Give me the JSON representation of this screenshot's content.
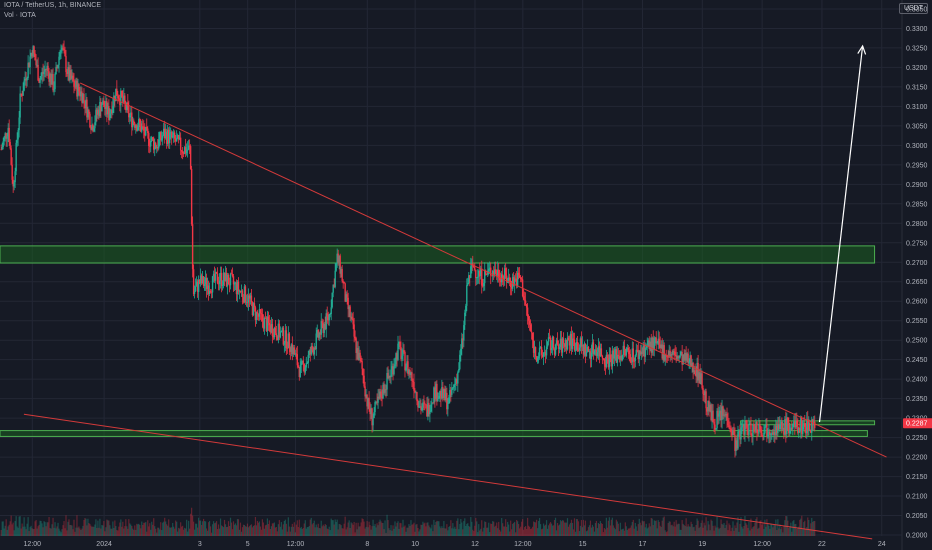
{
  "header": {
    "title": "IOTA / TetherUS, 1h, BINANCE",
    "indicator": "Vol · IOTA"
  },
  "currency_button": "USDT",
  "current_price_label": "0.2287",
  "colors": {
    "background": "#161a25",
    "grid": "#232735",
    "up": "#22ab94",
    "down": "#f23645",
    "zone_fill": "#1b5e20",
    "zone_stroke": "#4caf50",
    "trendline": "#d33a3a",
    "arrow": "#ffffff",
    "price_tag": "#f23645"
  },
  "chart_data": {
    "type": "candlestick",
    "title": "IOTA / TetherUS, 1h, BINANCE",
    "ylabel": "USDT",
    "y_axis_ticks": [
      "0.3350",
      "0.3300",
      "0.3250",
      "0.3200",
      "0.3150",
      "0.3100",
      "0.3050",
      "0.3000",
      "0.2950",
      "0.2900",
      "0.2850",
      "0.2800",
      "0.2750",
      "0.2700",
      "0.2650",
      "0.2600",
      "0.2550",
      "0.2500",
      "0.2450",
      "0.2400",
      "0.2350",
      "0.2300",
      "0.2250",
      "0.2200",
      "0.2150",
      "0.2100",
      "0.2050",
      "0.2000"
    ],
    "x_axis_ticks": [
      "12:00",
      "2024",
      "3",
      "5",
      "12:00",
      "8",
      "10",
      "12",
      "12:00",
      "15",
      "17",
      "19",
      "12:00",
      "22",
      "24"
    ],
    "x_tick_centers": [
      0,
      3,
      7,
      9,
      11,
      14,
      16,
      18.5,
      20.5,
      23,
      25.5,
      28,
      30.5,
      33,
      35.5
    ],
    "x_range": [
      -1.35,
      37.6
    ],
    "ylim": [
      0.19975,
      0.3373
    ],
    "grid": true,
    "zones": [
      {
        "y_low": 0.2698,
        "y_high": 0.2742,
        "x_from": -1.35,
        "x_to": 35.2
      },
      {
        "y_low": 0.2253,
        "y_high": 0.2268,
        "x_from": -1.35,
        "x_to": 34.9
      },
      {
        "y_low": 0.2283,
        "y_high": 0.2293,
        "x_from": 29.6,
        "x_to": 35.2
      }
    ],
    "trendlines": [
      {
        "x1": 2.0,
        "y1": 0.316,
        "x2": 35.7,
        "y2": 0.22
      },
      {
        "x1": -0.35,
        "y1": 0.231,
        "x2": 35.1,
        "y2": 0.199
      }
    ],
    "arrow": {
      "x1": 32.9,
      "y1": 0.229,
      "x2": 34.7,
      "y2": 0.3255
    },
    "anchors": [
      [
        -1.3,
        0.299
      ],
      [
        -1.0,
        0.305
      ],
      [
        -0.8,
        0.289
      ],
      [
        -0.5,
        0.312
      ],
      [
        -0.35,
        0.316
      ],
      [
        0.0,
        0.325
      ],
      [
        0.3,
        0.317
      ],
      [
        0.6,
        0.32
      ],
      [
        0.9,
        0.315
      ],
      [
        1.2,
        0.326
      ],
      [
        1.5,
        0.318
      ],
      [
        1.8,
        0.315
      ],
      [
        2.1,
        0.313
      ],
      [
        2.5,
        0.305
      ],
      [
        2.9,
        0.311
      ],
      [
        3.2,
        0.308
      ],
      [
        3.5,
        0.314
      ],
      [
        3.8,
        0.311
      ],
      [
        4.1,
        0.307
      ],
      [
        4.5,
        0.305
      ],
      [
        4.8,
        0.302
      ],
      [
        5.2,
        0.3
      ],
      [
        5.5,
        0.303
      ],
      [
        6.0,
        0.301
      ],
      [
        6.3,
        0.299
      ],
      [
        6.6,
        0.299
      ],
      [
        6.72,
        0.262
      ],
      [
        7.0,
        0.265
      ],
      [
        7.4,
        0.264
      ],
      [
        7.8,
        0.266
      ],
      [
        8.3,
        0.265
      ],
      [
        8.6,
        0.263
      ],
      [
        9.0,
        0.261
      ],
      [
        9.3,
        0.257
      ],
      [
        9.8,
        0.254
      ],
      [
        10.3,
        0.252
      ],
      [
        10.8,
        0.249
      ],
      [
        11.2,
        0.242
      ],
      [
        11.5,
        0.245
      ],
      [
        11.8,
        0.249
      ],
      [
        12.1,
        0.253
      ],
      [
        12.4,
        0.256
      ],
      [
        12.6,
        0.265
      ],
      [
        12.75,
        0.271
      ],
      [
        12.9,
        0.268
      ],
      [
        13.1,
        0.26
      ],
      [
        13.3,
        0.256
      ],
      [
        13.5,
        0.249
      ],
      [
        13.8,
        0.242
      ],
      [
        14.0,
        0.234
      ],
      [
        14.2,
        0.23
      ],
      [
        14.4,
        0.233
      ],
      [
        14.7,
        0.238
      ],
      [
        15.0,
        0.242
      ],
      [
        15.3,
        0.248
      ],
      [
        15.6,
        0.244
      ],
      [
        15.9,
        0.24
      ],
      [
        16.2,
        0.233
      ],
      [
        16.5,
        0.232
      ],
      [
        16.8,
        0.237
      ],
      [
        17.1,
        0.236
      ],
      [
        17.4,
        0.234
      ],
      [
        17.8,
        0.242
      ],
      [
        18.0,
        0.251
      ],
      [
        18.2,
        0.265
      ],
      [
        18.4,
        0.269
      ],
      [
        18.8,
        0.266
      ],
      [
        19.2,
        0.268
      ],
      [
        19.6,
        0.267
      ],
      [
        20.0,
        0.265
      ],
      [
        20.4,
        0.266
      ],
      [
        20.7,
        0.256
      ],
      [
        21.0,
        0.247
      ],
      [
        21.3,
        0.246
      ],
      [
        21.6,
        0.249
      ],
      [
        22.0,
        0.248
      ],
      [
        22.4,
        0.25
      ],
      [
        22.8,
        0.249
      ],
      [
        23.2,
        0.247
      ],
      [
        23.6,
        0.248
      ],
      [
        24.0,
        0.245
      ],
      [
        24.4,
        0.246
      ],
      [
        24.8,
        0.247
      ],
      [
        25.2,
        0.246
      ],
      [
        25.6,
        0.248
      ],
      [
        26.0,
        0.249
      ],
      [
        26.4,
        0.247
      ],
      [
        26.8,
        0.246
      ],
      [
        27.2,
        0.245
      ],
      [
        27.6,
        0.244
      ],
      [
        27.9,
        0.241
      ],
      [
        28.2,
        0.233
      ],
      [
        28.5,
        0.229
      ],
      [
        28.8,
        0.231
      ],
      [
        29.1,
        0.23
      ],
      [
        29.4,
        0.223
      ],
      [
        29.7,
        0.228
      ],
      [
        30.0,
        0.227
      ],
      [
        30.3,
        0.228
      ],
      [
        30.6,
        0.227
      ],
      [
        30.9,
        0.228
      ],
      [
        31.2,
        0.227
      ],
      [
        31.5,
        0.228
      ],
      [
        31.8,
        0.2275
      ],
      [
        32.1,
        0.228
      ],
      [
        32.4,
        0.2282
      ],
      [
        32.7,
        0.2287
      ]
    ]
  }
}
